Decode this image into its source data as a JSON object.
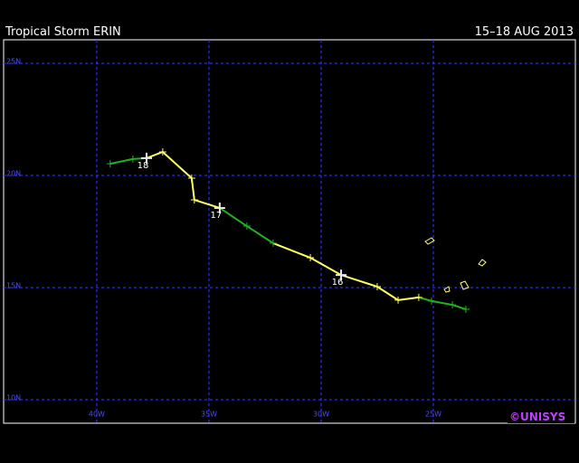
{
  "chart_data": {
    "type": "track",
    "title": "Tropical Storm ERIN",
    "subtitle": "15–18 AUG 2013",
    "credit": "©UNISYS",
    "x": [
      -39.4,
      -38.39,
      -37.78,
      -37.06,
      -35.77,
      -35.65,
      -34.52,
      -33.31,
      -32.14,
      -30.48,
      -29.11,
      -27.5,
      -26.57,
      -25.65,
      -25.08,
      -24.15,
      -23.55
    ],
    "y": [
      20.52,
      20.73,
      20.77,
      21.05,
      19.88,
      18.91,
      18.55,
      17.74,
      16.98,
      16.33,
      15.56,
      15.04,
      14.44,
      14.56,
      14.4,
      14.23,
      14.03
    ],
    "colors": [
      "#22b022",
      "#22b022",
      "#22b022",
      "#ffff60",
      "#ffff60",
      "#ffff60",
      "#ffff60",
      "#22b022",
      "#22b022",
      "#ffff60",
      "#ffff60",
      "#ffff60",
      "#ffff60",
      "#ffff60",
      "#22b022",
      "#22b022",
      "#22b022"
    ],
    "point_labels": [
      null,
      null,
      "18",
      null,
      null,
      null,
      "17",
      null,
      null,
      null,
      "16",
      null,
      null,
      null,
      null,
      null,
      null
    ],
    "xlim": [
      -44.15,
      -18.67
    ],
    "ylim": [
      8.95,
      26.05
    ],
    "xticks": [
      {
        "value": -40,
        "label": "40W"
      },
      {
        "value": -35,
        "label": "35W"
      },
      {
        "value": -30,
        "label": "30W"
      },
      {
        "value": -25,
        "label": "25W"
      }
    ],
    "yticks": [
      {
        "value": 10,
        "label": "10N"
      },
      {
        "value": 15,
        "label": "15N"
      },
      {
        "value": 20,
        "label": "20N"
      },
      {
        "value": 25,
        "label": "25N"
      }
    ],
    "grid": true
  }
}
